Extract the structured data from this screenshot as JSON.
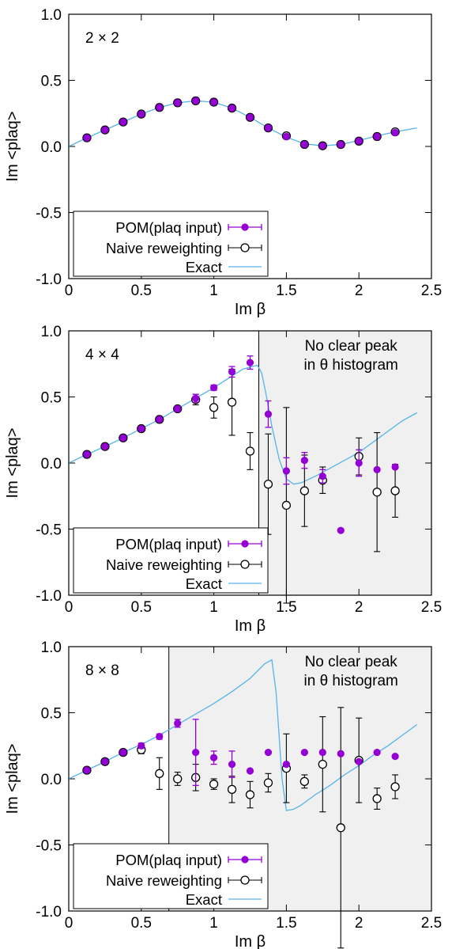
{
  "colors": {
    "pom": "#9400d3",
    "naive": "#000000",
    "exact": "#56b4e9",
    "shade": "#f0f0f0"
  },
  "legend": {
    "pom": "POM(plaq input)",
    "naive": "Naive reweighting",
    "exact": "Exact"
  },
  "chart_data": [
    {
      "type": "scatter",
      "label": "2 × 2",
      "xlabel": "Im β",
      "ylabel": "Im <plaq>",
      "xlim": [
        0,
        2.5
      ],
      "ylim": [
        -1.0,
        1.0
      ],
      "xticks": [
        "0",
        "0.5",
        "1",
        "1.5",
        "2",
        "2.5"
      ],
      "yticks": [
        "-1.0",
        "-0.5",
        "0.0",
        "0.5",
        "1.0"
      ],
      "legend_position": "bottom-left",
      "series": [
        {
          "name": "POM(plaq input)",
          "x": [
            0.125,
            0.25,
            0.375,
            0.5,
            0.625,
            0.75,
            0.875,
            1.0,
            1.125,
            1.25,
            1.375,
            1.5,
            1.625,
            1.75,
            1.875,
            2.0,
            2.125,
            2.25
          ],
          "y": [
            0.065,
            0.125,
            0.185,
            0.245,
            0.295,
            0.33,
            0.345,
            0.335,
            0.29,
            0.22,
            0.14,
            0.075,
            0.015,
            0.005,
            0.015,
            0.04,
            0.075,
            0.105
          ],
          "err": [
            0,
            0,
            0,
            0,
            0,
            0,
            0,
            0,
            0,
            0,
            0,
            0,
            0,
            0,
            0,
            0,
            0,
            0
          ]
        },
        {
          "name": "Naive reweighting",
          "x": [
            0.125,
            0.25,
            0.375,
            0.5,
            0.625,
            0.75,
            0.875,
            1.0,
            1.125,
            1.25,
            1.375,
            1.5,
            1.625,
            1.75,
            1.875,
            2.0,
            2.125,
            2.25
          ],
          "y": [
            0.065,
            0.125,
            0.185,
            0.245,
            0.295,
            0.33,
            0.345,
            0.335,
            0.29,
            0.22,
            0.14,
            0.08,
            0.015,
            0.005,
            0.015,
            0.04,
            0.075,
            0.11
          ],
          "err": [
            0,
            0,
            0,
            0,
            0,
            0,
            0,
            0,
            0,
            0,
            0,
            0,
            0,
            0,
            0,
            0,
            0,
            0
          ]
        },
        {
          "name": "Exact",
          "x": [
            0,
            0.125,
            0.25,
            0.375,
            0.5,
            0.625,
            0.75,
            0.875,
            1.0,
            1.125,
            1.25,
            1.375,
            1.5,
            1.625,
            1.75,
            1.875,
            2.0,
            2.125,
            2.25,
            2.4
          ],
          "y": [
            0.0,
            0.065,
            0.125,
            0.185,
            0.245,
            0.295,
            0.33,
            0.345,
            0.335,
            0.29,
            0.22,
            0.14,
            0.07,
            0.02,
            0.005,
            0.015,
            0.045,
            0.08,
            0.11,
            0.14
          ]
        }
      ]
    },
    {
      "type": "scatter",
      "label": "4 × 4",
      "xlabel": "Im β",
      "ylabel": "Im <plaq>",
      "xlim": [
        0,
        2.5
      ],
      "ylim": [
        -1.0,
        1.0
      ],
      "xticks": [
        "0",
        "0.5",
        "1",
        "1.5",
        "2",
        "2.5"
      ],
      "yticks": [
        "-1.0",
        "-0.5",
        "0.0",
        "0.5",
        "1.0"
      ],
      "legend_position": "bottom-left",
      "shaded_from_x": 1.31,
      "annotation": [
        "No clear peak",
        "in θ histogram"
      ],
      "series": [
        {
          "name": "POM(plaq input)",
          "x": [
            0.125,
            0.25,
            0.375,
            0.5,
            0.625,
            0.75,
            0.875,
            1.0,
            1.125,
            1.25,
            1.375,
            1.5,
            1.625,
            1.75,
            1.875,
            2.0,
            2.125,
            2.25
          ],
          "y": [
            0.065,
            0.125,
            0.19,
            0.26,
            0.33,
            0.41,
            0.49,
            0.57,
            0.69,
            0.76,
            0.37,
            -0.06,
            0.02,
            -0.1,
            -0.51,
            0.0,
            -0.05,
            -0.03
          ],
          "err": [
            0.01,
            0.01,
            0.01,
            0.01,
            0.01,
            0.02,
            0.03,
            0.02,
            0.04,
            0.05,
            0.1,
            0.1,
            0.06,
            0.05,
            0.0,
            0.1,
            0.0,
            0.0
          ]
        },
        {
          "name": "Naive reweighting",
          "x": [
            0.125,
            0.25,
            0.375,
            0.5,
            0.625,
            0.75,
            0.875,
            1.0,
            1.125,
            1.25,
            1.375,
            1.5,
            1.625,
            1.75,
            1.875,
            2.0,
            2.125,
            2.25
          ],
          "y": [
            0.065,
            0.125,
            0.19,
            0.26,
            0.33,
            0.41,
            0.48,
            0.42,
            0.46,
            0.09,
            -0.16,
            -0.32,
            -0.21,
            -0.13,
            null,
            0.05,
            -0.22,
            -0.21
          ],
          "err": [
            0.01,
            0.01,
            0.01,
            0.01,
            0.01,
            0.02,
            0.04,
            0.08,
            0.25,
            0.14,
            0.38,
            0.74,
            0.27,
            0.1,
            null,
            0.14,
            0.45,
            0.2
          ]
        },
        {
          "name": "Exact",
          "x": [
            0,
            0.125,
            0.25,
            0.375,
            0.5,
            0.625,
            0.75,
            0.875,
            1.0,
            1.1,
            1.2,
            1.3,
            1.33,
            1.36,
            1.4,
            1.45,
            1.5,
            1.55,
            1.6,
            1.7,
            1.8,
            1.9,
            2.0,
            2.1,
            2.2,
            2.3,
            2.4
          ],
          "y": [
            0.0,
            0.065,
            0.125,
            0.19,
            0.26,
            0.33,
            0.41,
            0.49,
            0.57,
            0.64,
            0.71,
            0.74,
            0.68,
            0.52,
            0.28,
            0.03,
            -0.12,
            -0.16,
            -0.15,
            -0.1,
            -0.04,
            0.02,
            0.08,
            0.16,
            0.24,
            0.32,
            0.38
          ]
        }
      ]
    },
    {
      "type": "scatter",
      "label": "8 × 8",
      "xlabel": "Im β",
      "ylabel": "Im <plaq>",
      "xlim": [
        0,
        2.5
      ],
      "ylim": [
        -1.0,
        1.0
      ],
      "xticks": [
        "0",
        "0.5",
        "1",
        "1.5",
        "2",
        "2.5"
      ],
      "yticks": [
        "-1.0",
        "-0.5",
        "0.0",
        "0.5",
        "1.0"
      ],
      "legend_position": "bottom-left",
      "shaded_from_x": 0.69,
      "annotation": [
        "No clear peak",
        "in θ histogram"
      ],
      "series": [
        {
          "name": "POM(plaq input)",
          "x": [
            0.125,
            0.25,
            0.375,
            0.5,
            0.625,
            0.75,
            0.875,
            1.0,
            1.125,
            1.25,
            1.375,
            1.5,
            1.625,
            1.75,
            1.875,
            2.0,
            2.125,
            2.25
          ],
          "y": [
            0.065,
            0.13,
            0.2,
            0.25,
            0.32,
            0.42,
            0.2,
            0.16,
            0.11,
            0.06,
            0.2,
            0.11,
            0.2,
            0.2,
            0.19,
            0.13,
            0.2,
            0.17
          ],
          "err": [
            0.01,
            0.01,
            0.01,
            0.02,
            0.02,
            0.03,
            0.25,
            0.05,
            0.1,
            0.0,
            0.0,
            0.0,
            0.0,
            0.0,
            0.0,
            0.0,
            0.0,
            0.0
          ]
        },
        {
          "name": "Naive reweighting",
          "x": [
            0.125,
            0.25,
            0.375,
            0.5,
            0.625,
            0.75,
            0.875,
            1.0,
            1.125,
            1.25,
            1.375,
            1.5,
            1.625,
            1.75,
            1.875,
            2.0,
            2.125,
            2.25
          ],
          "y": [
            0.065,
            0.13,
            0.2,
            0.22,
            0.04,
            0.0,
            0.01,
            -0.04,
            -0.08,
            -0.12,
            -0.03,
            0.08,
            -0.02,
            0.11,
            -0.37,
            0.14,
            -0.15,
            -0.06
          ],
          "err": [
            0.01,
            0.01,
            0.01,
            0.03,
            0.12,
            0.05,
            0.1,
            0.04,
            0.1,
            0.1,
            0.07,
            0.26,
            0.05,
            0.36,
            0.91,
            0.32,
            0.08,
            0.09
          ]
        },
        {
          "name": "Exact",
          "x": [
            0,
            0.125,
            0.25,
            0.375,
            0.5,
            0.625,
            0.75,
            0.875,
            1.0,
            1.125,
            1.25,
            1.35,
            1.4,
            1.43,
            1.47,
            1.5,
            1.55,
            1.6,
            1.7,
            1.8,
            1.9,
            2.0,
            2.1,
            2.2,
            2.3,
            2.4
          ],
          "y": [
            0.0,
            0.065,
            0.13,
            0.2,
            0.26,
            0.33,
            0.41,
            0.49,
            0.57,
            0.66,
            0.76,
            0.87,
            0.9,
            0.65,
            0.0,
            -0.24,
            -0.23,
            -0.2,
            -0.12,
            -0.05,
            0.03,
            0.1,
            0.18,
            0.25,
            0.33,
            0.41
          ]
        }
      ]
    }
  ]
}
